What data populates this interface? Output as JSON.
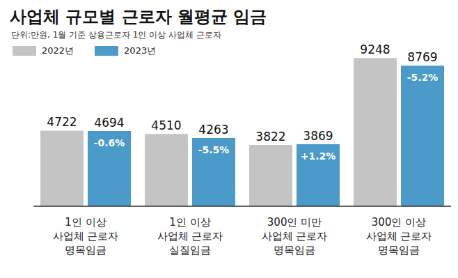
{
  "chart_data": {
    "type": "bar",
    "title": "사업체 규모별 근로자 월평균 임금",
    "subtitle": "단위:만원, 1월 기준 상용근로자 1인 이상 사업체 근로자",
    "categories": [
      "1인 이상\n사업체 근로자\n명목임금",
      "1인 이상\n사업체 근로자\n실질임금",
      "300인 미만\n사업체 근로자\n명목임금",
      "300인 이상\n사업체 근로자\n명목임금"
    ],
    "series": [
      {
        "name": "2022년",
        "color": "#c4c4c4",
        "values": [
          4722,
          4510,
          3822,
          9248
        ]
      },
      {
        "name": "2023년",
        "color": "#4a9bc9",
        "values": [
          4694,
          4263,
          3869,
          8769
        ]
      }
    ],
    "annotations": [
      "-0.6%",
      "-5.5%",
      "+1.2%",
      "-5.2%"
    ],
    "ylim": [
      0,
      10000
    ],
    "grid": false,
    "legend": "top-left",
    "data_labels": true,
    "tick_labels": "x"
  }
}
